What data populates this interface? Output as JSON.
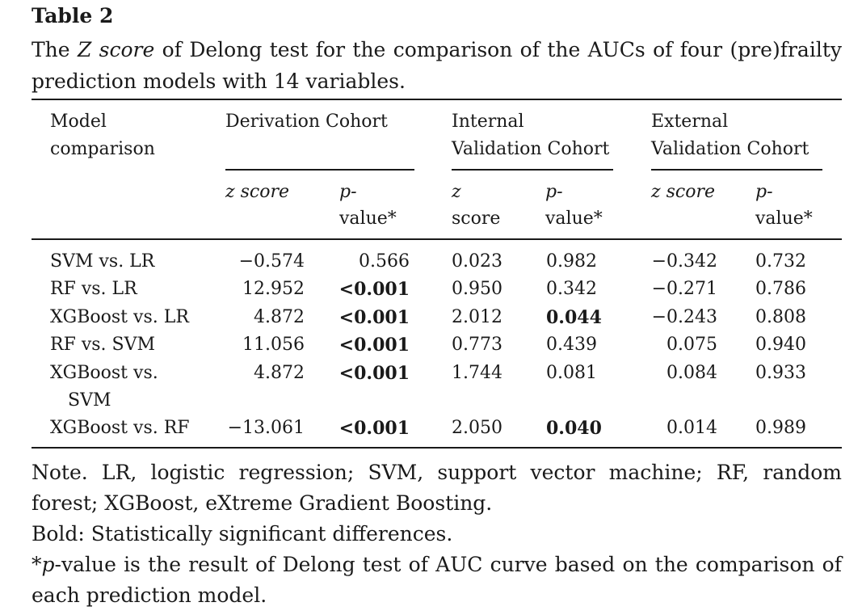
{
  "title": "Table 2",
  "caption": {
    "pre": "The ",
    "italic": "Z score",
    "post": " of Delong test for the comparison of the AUCs of four (pre)frailty prediction models with 14 variables."
  },
  "headers": {
    "model_line1": "Model",
    "model_line2": "comparison",
    "deriv": "Derivation Cohort",
    "internal_line1": "Internal",
    "internal_line2": "Validation Cohort",
    "external_line1": "External",
    "external_line2": "Validation Cohort",
    "d_z": "z score",
    "d_p1": "p-",
    "d_p2": "value*",
    "i_z1": "z",
    "i_z2": "score",
    "i_p1": "p-",
    "i_p2": "value*",
    "e_z": "z score",
    "e_p1": "p-",
    "e_p2": "value*"
  },
  "rows": [
    {
      "model": "SVM vs. LR",
      "model2": "",
      "dz": "−0.574",
      "dp": "0.566",
      "iz": "0.023",
      "ip": "0.982",
      "ez": "−0.342",
      "ep": "0.732"
    },
    {
      "model": "RF vs. LR",
      "model2": "",
      "dz": "12.952",
      "dp": "<0.001",
      "iz": "0.950",
      "ip": "0.342",
      "ez": "−0.271",
      "ep": "0.786"
    },
    {
      "model": "XGBoost vs. LR",
      "model2": "",
      "dz": "4.872",
      "dp": "<0.001",
      "iz": "2.012",
      "ip": "0.044",
      "ez": "−0.243",
      "ep": "0.808"
    },
    {
      "model": "RF vs. SVM",
      "model2": "",
      "dz": "11.056",
      "dp": "<0.001",
      "iz": "0.773",
      "ip": "0.439",
      "ez": "0.075",
      "ep": "0.940"
    },
    {
      "model": "XGBoost vs.",
      "model2": "SVM",
      "dz": "4.872",
      "dp": "<0.001",
      "iz": "1.744",
      "ip": "0.081",
      "ez": "0.084",
      "ep": "0.933"
    },
    {
      "model": "XGBoost vs. RF",
      "model2": "",
      "dz": "−13.061",
      "dp": "<0.001",
      "iz": "2.050",
      "ip": "0.040",
      "ez": "0.014",
      "ep": "0.989"
    }
  ],
  "notes": {
    "line1": "Note. LR, logistic regression; SVM, support vector machine; RF, random forest; XGBoost, eXtreme Gradient Boosting.",
    "line2": "Bold: Statistically significant differences.",
    "line3_star": "*",
    "line3_italic": "p",
    "line3_rest": "-value is the result of Delong test of AUC curve based on the comparison of each prediction model."
  }
}
